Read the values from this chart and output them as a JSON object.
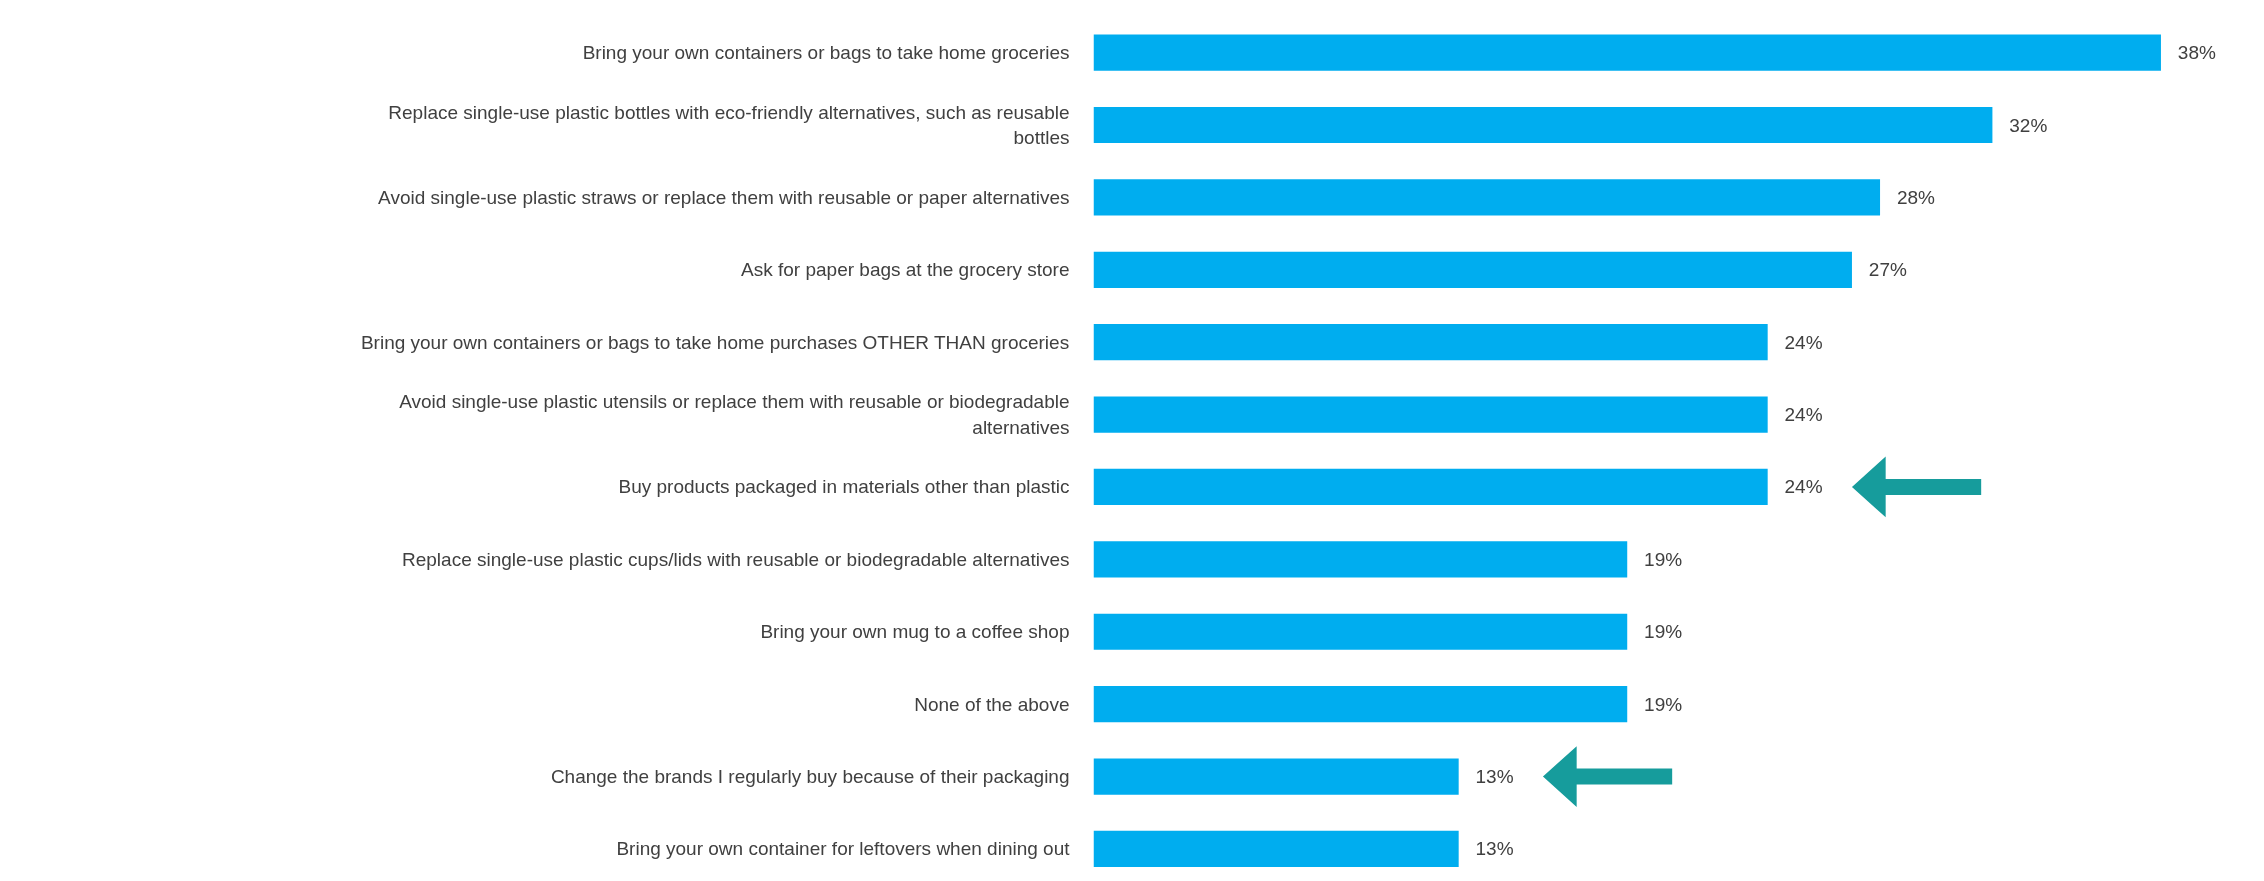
{
  "chart_data": {
    "type": "bar",
    "orientation": "horizontal",
    "tick_labels": "y",
    "categories": [
      "Bring your own containers or bags to take home groceries",
      "Replace single-use plastic bottles with eco-friendly alternatives, such as reusable bottles",
      "Avoid single-use plastic straws or replace them with reusable or paper alternatives",
      "Ask for paper bags at the grocery store",
      "Bring your own containers or bags to take home purchases OTHER THAN groceries",
      "Avoid single-use plastic utensils or replace them with reusable or biodegradable alternatives",
      "Buy products packaged in materials other than plastic",
      "Replace single-use plastic cups/lids with reusable or biodegradable alternatives",
      "Bring your own mug to a coffee shop",
      "None of the above",
      "Change the brands I regularly buy because of their packaging",
      "Bring your own container for leftovers when dining out"
    ],
    "values": [
      38,
      32,
      28,
      27,
      24,
      24,
      24,
      19,
      19,
      19,
      13,
      13
    ],
    "value_labels": [
      "38%",
      "32%",
      "28%",
      "27%",
      "24%",
      "24%",
      "24%",
      "19%",
      "19%",
      "19%",
      "13%",
      "13%"
    ],
    "color": "#00adef"
  }
}
